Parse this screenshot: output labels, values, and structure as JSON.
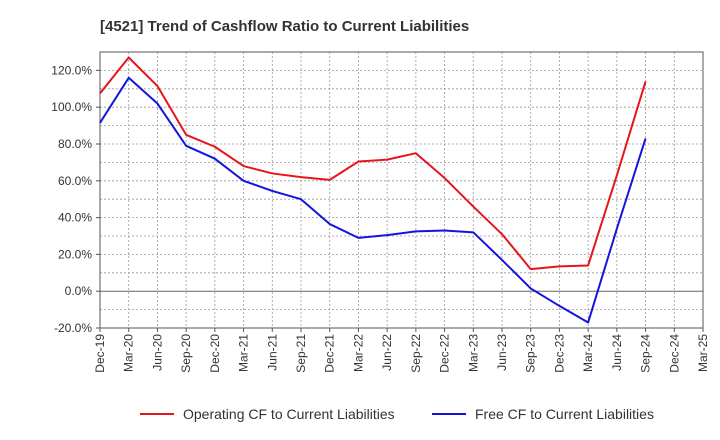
{
  "chart_data": {
    "type": "line",
    "title": "[4521]  Trend of Cashflow Ratio to Current Liabilities",
    "xlabel": "",
    "ylabel": "",
    "y_unit": "%",
    "ylim": [
      -20,
      130
    ],
    "yticks": [
      "-20.0%",
      "0.0%",
      "20.0%",
      "40.0%",
      "60.0%",
      "80.0%",
      "100.0%",
      "120.0%"
    ],
    "ytick_values": [
      -20,
      0,
      20,
      40,
      60,
      80,
      100,
      120
    ],
    "x": [
      "Dec-19",
      "Mar-20",
      "Jun-20",
      "Sep-20",
      "Dec-20",
      "Mar-21",
      "Jun-21",
      "Sep-21",
      "Dec-21",
      "Mar-22",
      "Jun-22",
      "Sep-22",
      "Dec-22",
      "Mar-23",
      "Jun-23",
      "Sep-23",
      "Dec-23",
      "Mar-24",
      "Jun-24",
      "Sep-24",
      "Dec-24",
      "Mar-25"
    ],
    "grid": true,
    "legend": "bottom",
    "series": [
      {
        "name": "Operating CF to Current Liabilities",
        "color": "#e8141b",
        "values": [
          107.5,
          127,
          111.5,
          85,
          78.5,
          68,
          64,
          62,
          60.5,
          70.5,
          71.5,
          75,
          61.5,
          46,
          31,
          12,
          13.5,
          14,
          63,
          114,
          null,
          null
        ]
      },
      {
        "name": "Free CF to Current Liabilities",
        "color": "#1414e0",
        "values": [
          91.5,
          116,
          102,
          79,
          72,
          60,
          54.5,
          50,
          36.5,
          29,
          30.5,
          32.5,
          33,
          32,
          17,
          1.5,
          -8,
          -17,
          34,
          83,
          null,
          null
        ]
      }
    ]
  }
}
